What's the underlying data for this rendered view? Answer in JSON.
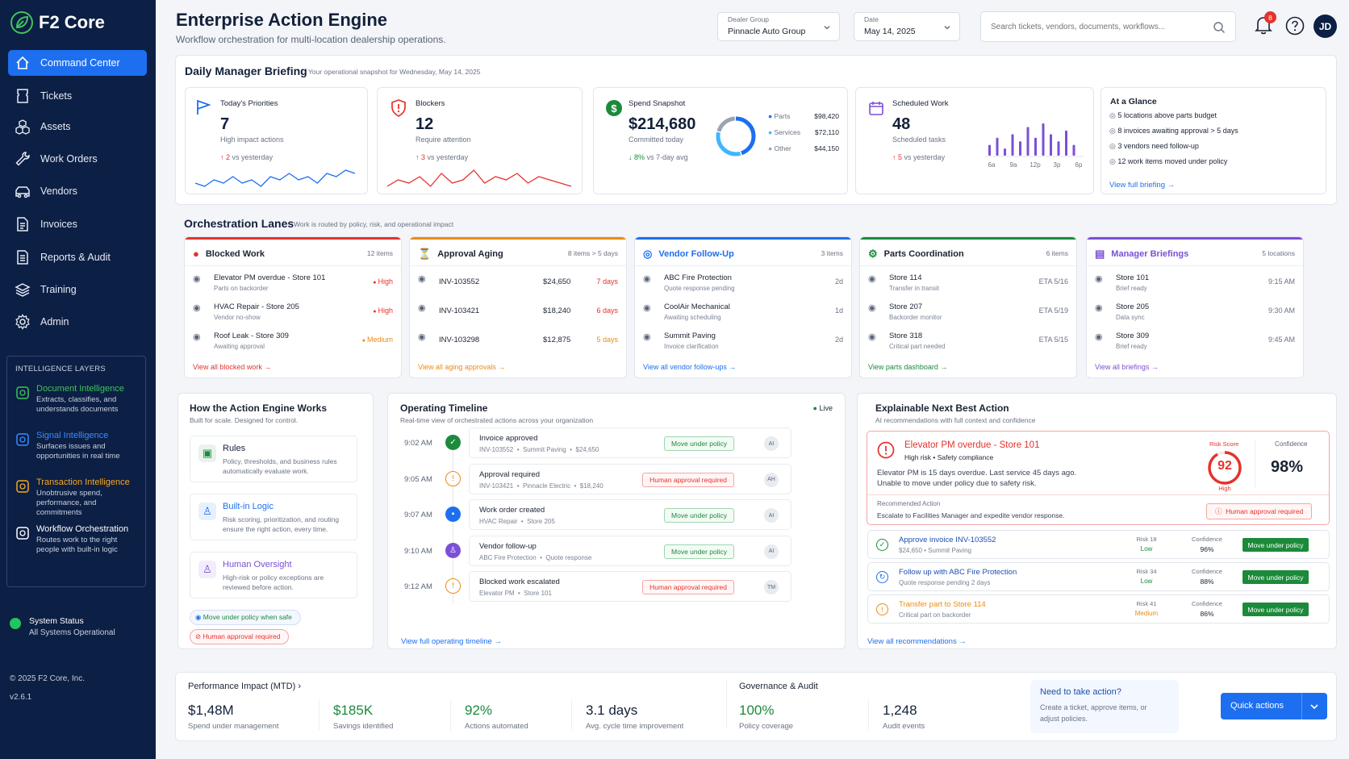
{
  "app": {
    "name": "F2 Core",
    "version": "v2.6.1",
    "copyright": "© 2025 F2 Core, Inc."
  },
  "sidebar": {
    "items": [
      {
        "label": "Command Center",
        "icon": "home-icon",
        "active": true
      },
      {
        "label": "Tickets",
        "icon": "ticket-icon"
      },
      {
        "label": "Assets",
        "icon": "cubes-icon"
      },
      {
        "label": "Work Orders",
        "icon": "wrench-icon"
      },
      {
        "label": "Vendors",
        "icon": "truck-icon"
      },
      {
        "label": "Invoices",
        "icon": "document-icon"
      },
      {
        "label": "Reports & Audit",
        "icon": "report-icon"
      },
      {
        "label": "Training",
        "icon": "layers-icon"
      },
      {
        "label": "Admin",
        "icon": "gear-icon"
      }
    ],
    "layers_heading": "INTELLIGENCE LAYERS",
    "layers": [
      {
        "title": "Document Intelligence",
        "desc": "Extracts, classifies, and understands documents",
        "color": "#3fc35b"
      },
      {
        "title": "Signal Intelligence",
        "desc": "Surfaces issues and opportunities in real time",
        "color": "#3b8cff"
      },
      {
        "title": "Transaction Intelligence",
        "desc": "Unobtrusive spend, performance, and commitments",
        "color": "#f5a623"
      },
      {
        "title": "Workflow Orchestration",
        "desc": "Routes work to the right people with built-in logic",
        "color": "#ffffff"
      }
    ],
    "system_status_title": "System Status",
    "system_status_value": "All Systems Operational"
  },
  "header": {
    "title": "Enterprise Action Engine",
    "subtitle": "Workflow orchestration for multi-location dealership operations.",
    "dealer_group_label": "Dealer Group",
    "dealer_group_value": "Pinnacle Auto Group",
    "date_label": "Date",
    "date_value": "May 14, 2025",
    "search_placeholder": "Search tickets, vendors, documents, workflows...",
    "notification_count": "8",
    "user_initials": "JD"
  },
  "briefing": {
    "title": "Daily Manager Briefing",
    "subtitle": "Your operational snapshot for Wednesday, May 14, 2025",
    "priorities": {
      "label": "Today's Priorities",
      "value": "7",
      "desc": "High impact actions",
      "delta": "2",
      "delta_text": "vs yesterday",
      "spark": [
        6,
        5,
        7,
        6,
        8,
        6,
        7,
        5,
        8,
        7,
        9,
        7,
        8,
        6,
        9,
        8,
        10,
        9
      ]
    },
    "blockers": {
      "label": "Blockers",
      "value": "12",
      "desc": "Require attention",
      "delta": "3",
      "delta_text": "vs yesterday",
      "spark": [
        4,
        6,
        5,
        7,
        4,
        8,
        5,
        6,
        9,
        5,
        7,
        6,
        8,
        5,
        7,
        6,
        5,
        4
      ]
    },
    "spend": {
      "label": "Spend Snapshot",
      "value": "$214,680",
      "desc": "Committed today",
      "delta": "8%",
      "delta_text": "vs 7-day avg",
      "breakdown": [
        {
          "name": "Parts",
          "value": "$98,420",
          "color": "#1d6ff0",
          "amount": 98420
        },
        {
          "name": "Services",
          "value": "$72,110",
          "color": "#3fb6ff",
          "amount": 72110
        },
        {
          "name": "Other",
          "value": "$44,150",
          "color": "#9aa3b2",
          "amount": 44150
        }
      ]
    },
    "scheduled": {
      "label": "Scheduled Work",
      "value": "48",
      "desc": "Scheduled tasks",
      "delta": "5",
      "delta_text": "vs yesterday",
      "bars": [
        3,
        5,
        2,
        6,
        4,
        8,
        5,
        9,
        6,
        4,
        7,
        3
      ],
      "ticks": [
        "6a",
        "9a",
        "12p",
        "3p",
        "6p"
      ]
    },
    "glance": {
      "title": "At a Glance",
      "items": [
        "5 locations above parts budget",
        "8 invoices awaiting approval > 5 days",
        "3 vendors need follow-up",
        "12 work items moved under policy"
      ],
      "link": "View full briefing"
    }
  },
  "lanes": {
    "title": "Orchestration Lanes",
    "subtitle": "Work is routed by policy, risk, and operational impact",
    "blocked": {
      "title": "Blocked Work",
      "count": "12 items",
      "link": "View all blocked work",
      "rows": [
        {
          "a": "Elevator PM overdue - Store 101",
          "b": "Parts on backorder",
          "r": "High"
        },
        {
          "a": "HVAC Repair - Store 205",
          "b": "Vendor no-show",
          "r": "High"
        },
        {
          "a": "Roof Leak - Store 309",
          "b": "Awaiting approval",
          "r": "Medium"
        }
      ]
    },
    "aging": {
      "title": "Approval Aging",
      "count": "8 items > 5 days",
      "link": "View all aging approvals",
      "rows": [
        {
          "a": "INV-103552",
          "m": "$24,650",
          "r": "7 days"
        },
        {
          "a": "INV-103421",
          "m": "$18,240",
          "r": "6 days"
        },
        {
          "a": "INV-103298",
          "m": "$12,875",
          "r": "5 days"
        }
      ]
    },
    "vendor": {
      "title": "Vendor Follow-Up",
      "count": "3 items",
      "link": "View all vendor follow-ups",
      "rows": [
        {
          "a": "ABC Fire Protection",
          "b": "Quote response pending",
          "r": "2d"
        },
        {
          "a": "CoolAir Mechanical",
          "b": "Awaiting scheduling",
          "r": "1d"
        },
        {
          "a": "Summit Paving",
          "b": "Invoice clarification",
          "r": "2d"
        }
      ]
    },
    "parts": {
      "title": "Parts Coordination",
      "count": "6 items",
      "link": "View parts dashboard",
      "rows": [
        {
          "a": "Store 114",
          "b": "Transfer in transit",
          "r": "ETA 5/16"
        },
        {
          "a": "Store 207",
          "b": "Backorder monitor",
          "r": "ETA 5/19"
        },
        {
          "a": "Store 318",
          "b": "Critical part needed",
          "r": "ETA 5/15"
        }
      ]
    },
    "manager": {
      "title": "Manager Briefings",
      "count": "5 locations",
      "link": "View all briefings",
      "rows": [
        {
          "a": "Store 101",
          "b": "Brief ready",
          "r": "9:15 AM"
        },
        {
          "a": "Store 205",
          "b": "Data sync",
          "r": "9:30 AM"
        },
        {
          "a": "Store 309",
          "b": "Brief ready",
          "r": "9:45 AM"
        }
      ]
    }
  },
  "how": {
    "title": "How the Action Engine Works",
    "subtitle": "Built for scale. Designed for control.",
    "items": [
      {
        "title": "Rules",
        "desc": "Policy, thresholds, and business rules automatically evaluate work."
      },
      {
        "title": "Built-in Logic",
        "desc": "Risk scoring, prioritization, and routing ensure the right action, every time."
      },
      {
        "title": "Human Oversight",
        "desc": "High-risk or policy exceptions are reviewed before action."
      }
    ],
    "pill_green": "Move under policy when safe",
    "pill_red": "Human approval required"
  },
  "timeline": {
    "title": "Operating Timeline",
    "subtitle": "Real-time view of orchestrated actions across your organization",
    "live": "Live",
    "link": "View full operating timeline",
    "rows": [
      {
        "time": "9:02 AM",
        "title": "Invoice approved",
        "sub": "INV-103552  •  Summit Paving  •  $24,650",
        "action": "Move under policy",
        "who": "AI",
        "kind": "green"
      },
      {
        "time": "9:05 AM",
        "title": "Approval required",
        "sub": "INV-103421  •  Pinnacle Electric  •  $18,240",
        "action": "Human approval required",
        "who": "AH",
        "kind": "red"
      },
      {
        "time": "9:07 AM",
        "title": "Work order created",
        "sub": "HVAC Repair  •  Store 205",
        "action": "Move under policy",
        "who": "AI",
        "kind": "green"
      },
      {
        "time": "9:10 AM",
        "title": "Vendor follow-up",
        "sub": "ABC Fire Protection  •  Quote response",
        "action": "Move under policy",
        "who": "AI",
        "kind": "green"
      },
      {
        "time": "9:12 AM",
        "title": "Blocked work escalated",
        "sub": "Elevator PM  •  Store 101",
        "action": "Human approval required",
        "who": "TM",
        "kind": "red"
      }
    ]
  },
  "nba": {
    "title": "Explainable Next Best Action",
    "subtitle": "AI recommendations with full context and confidence",
    "main": {
      "title": "Elevator PM overdue - Store 101",
      "tags": "High risk  •  Safety compliance",
      "desc1": "Elevator PM is 15 days overdue. Last service 45 days ago.",
      "desc2": "Unable to move under policy due to safety risk.",
      "risk_label": "Risk Score",
      "risk_value": "92",
      "risk_level": "High",
      "risk": 92,
      "conf_label": "Confidence",
      "conf_value": "98%",
      "rec_label": "Recommended Action",
      "rec_text": "Escalate to Facilities Manager and expedite vendor response.",
      "action": "Human approval required"
    },
    "rows": [
      {
        "title": "Approve invoice INV-103552",
        "sub": "$24,650  •  Summit Paving",
        "risk": "Risk 18",
        "level": "Low",
        "conf": "96%",
        "action": "Move under policy",
        "color": "#1c8a3c"
      },
      {
        "title": "Follow up with ABC Fire Protection",
        "sub": "Quote response pending 2 days",
        "risk": "Risk 34",
        "level": "Low",
        "conf": "88%",
        "action": "Move under policy",
        "color": "#1d6ff0"
      },
      {
        "title": "Transfer part to Store 114",
        "sub": "Critical part on backorder",
        "risk": "Risk 41",
        "level": "Medium",
        "conf": "86%",
        "action": "Move under policy",
        "color": "#ef8a10"
      }
    ],
    "conf_label": "Confidence",
    "link": "View all recommendations"
  },
  "perf": {
    "title": "Performance Impact  (MTD)",
    "kpis": [
      {
        "value": "$1,48M",
        "label": "Spend under management"
      },
      {
        "value": "$185K",
        "label": "Savings identified"
      },
      {
        "value": "92%",
        "label": "Actions automated"
      },
      {
        "value": "3.1 days",
        "label": "Avg. cycle time improvement"
      }
    ],
    "gov_title": "Governance & Audit",
    "gov": [
      {
        "value": "100%",
        "label": "Policy coverage"
      },
      {
        "value": "1,248",
        "label": "Audit events"
      }
    ],
    "cta_title": "Need to take action?",
    "cta_desc": "Create a ticket, approve items, or adjust policies.",
    "quick": "Quick actions"
  }
}
